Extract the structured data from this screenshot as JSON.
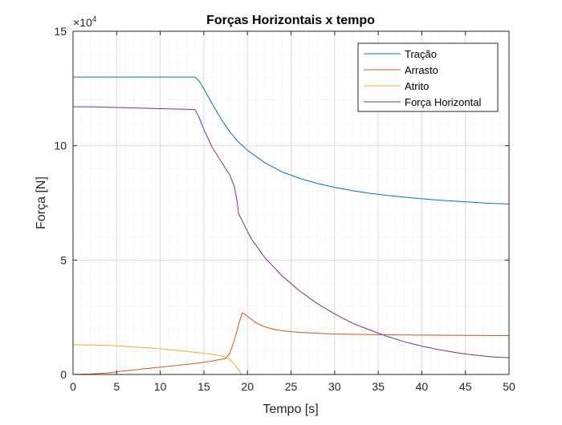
{
  "chart_data": {
    "type": "line",
    "title": "Forças Horizontais x tempo",
    "xlabel": "Tempo [s]",
    "ylabel": "Força [N]",
    "xlim": [
      0,
      50
    ],
    "ylim": [
      0,
      150000
    ],
    "x_ticks": [
      0,
      5,
      10,
      15,
      20,
      25,
      30,
      35,
      40,
      45,
      50
    ],
    "y_ticks": [
      0,
      5,
      10,
      15
    ],
    "y_exponent_base": "×10",
    "y_exponent_power": "4",
    "grid": true,
    "minor_grid": true,
    "legend_position": "top-right",
    "series": [
      {
        "name": "Tração",
        "color": "#0072BD",
        "x": [
          0,
          14,
          14.5,
          15,
          16,
          17,
          18,
          19,
          20,
          22,
          24,
          26,
          28,
          30,
          32,
          34,
          36,
          38,
          40,
          42,
          44,
          46,
          48,
          50
        ],
        "y": [
          130000,
          130000,
          128000,
          124800,
          118000,
          111500,
          106000,
          101500,
          98000,
          92500,
          88500,
          85700,
          83500,
          81800,
          80400,
          79200,
          78300,
          77500,
          76800,
          76200,
          75700,
          75200,
          74800,
          74500
        ]
      },
      {
        "name": "Arrasto",
        "color": "#D95319",
        "x": [
          0,
          2,
          4,
          6,
          8,
          10,
          12,
          14,
          16,
          17.5,
          18,
          18.5,
          19,
          19.4,
          19.8,
          20.5,
          21,
          22,
          23,
          24,
          26,
          28,
          30,
          35,
          40,
          45,
          50
        ],
        "y": [
          0,
          200,
          700,
          1600,
          2400,
          3200,
          4000,
          4800,
          5900,
          7000,
          9500,
          15000,
          22000,
          27000,
          26000,
          24000,
          22500,
          20800,
          19800,
          19100,
          18400,
          18000,
          17700,
          17400,
          17200,
          17100,
          17000
        ]
      },
      {
        "name": "Atrito",
        "color": "#EDB120",
        "x": [
          0,
          2,
          4,
          6,
          8,
          10,
          12,
          14,
          16,
          17.5,
          18,
          18.5,
          19,
          19.3,
          20,
          25,
          30,
          35,
          40,
          45,
          50
        ],
        "y": [
          13000,
          12900,
          12700,
          12300,
          11800,
          11200,
          10500,
          9700,
          8800,
          7800,
          6500,
          4500,
          2000,
          0,
          0,
          0,
          0,
          0,
          0,
          0,
          0
        ]
      },
      {
        "name": "Força Horizontal",
        "color": "#7E2F8E",
        "x": [
          0,
          2,
          4,
          6,
          8,
          10,
          12,
          14,
          14.5,
          15,
          16,
          17,
          17.5,
          18,
          18.5,
          18.8,
          19,
          19.3,
          19.8,
          20.5,
          22,
          24,
          26,
          28,
          30,
          32,
          34,
          36,
          38,
          40,
          42,
          44,
          46,
          48,
          50
        ],
        "y": [
          117000,
          117000,
          116800,
          116600,
          116400,
          116200,
          116000,
          115800,
          112000,
          107000,
          99000,
          93000,
          90000,
          87000,
          82000,
          76000,
          70000,
          68000,
          64000,
          59000,
          51000,
          43000,
          36500,
          31000,
          26500,
          22500,
          19500,
          16700,
          14300,
          12400,
          10800,
          9500,
          8500,
          7700,
          7300
        ]
      }
    ]
  }
}
